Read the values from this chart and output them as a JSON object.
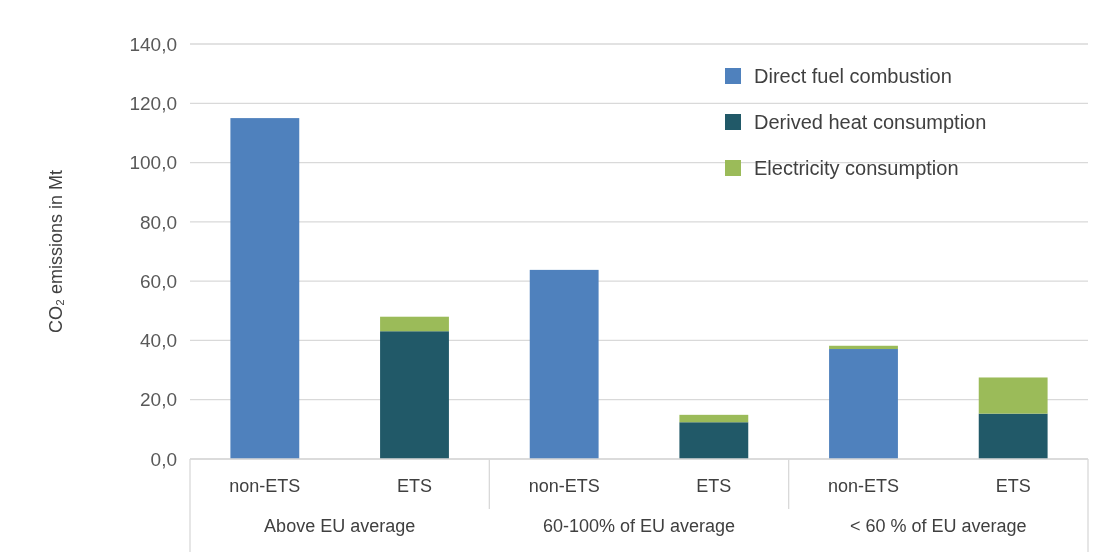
{
  "chart_data": {
    "type": "bar",
    "stacked": true,
    "ylabel": "CO₂ emissions in Mt",
    "categories": [
      "non-ETS",
      "ETS",
      "non-ETS",
      "ETS",
      "non-ETS",
      "ETS"
    ],
    "annotations": [
      "Above EU average",
      "60-100% of EU average",
      "< 60 % of EU average"
    ],
    "series": [
      {
        "name": "Direct fuel combustion",
        "color": "#4f81bd",
        "values": [
          115,
          0,
          63.8,
          0,
          37.1,
          0
        ]
      },
      {
        "name": "Derived heat consumption",
        "color": "#215968",
        "values": [
          0,
          43.1,
          0,
          12.4,
          0,
          15.3
        ]
      },
      {
        "name": "Electricity consumption",
        "color": "#9bbb59",
        "values": [
          0,
          4.9,
          0,
          2.5,
          1.1,
          12.2
        ]
      }
    ],
    "ylim": [
      0,
      140
    ],
    "yticks": [
      {
        "value": 0,
        "label": "0,0"
      },
      {
        "value": 20,
        "label": "20,0"
      },
      {
        "value": 40,
        "label": "40,0"
      },
      {
        "value": 60,
        "label": "60,0"
      },
      {
        "value": 80,
        "label": "80,0"
      },
      {
        "value": 100,
        "label": "100,0"
      },
      {
        "value": 120,
        "label": "120,0"
      },
      {
        "value": 140,
        "label": "140,0"
      }
    ],
    "grid": "y",
    "legend": "top right"
  }
}
